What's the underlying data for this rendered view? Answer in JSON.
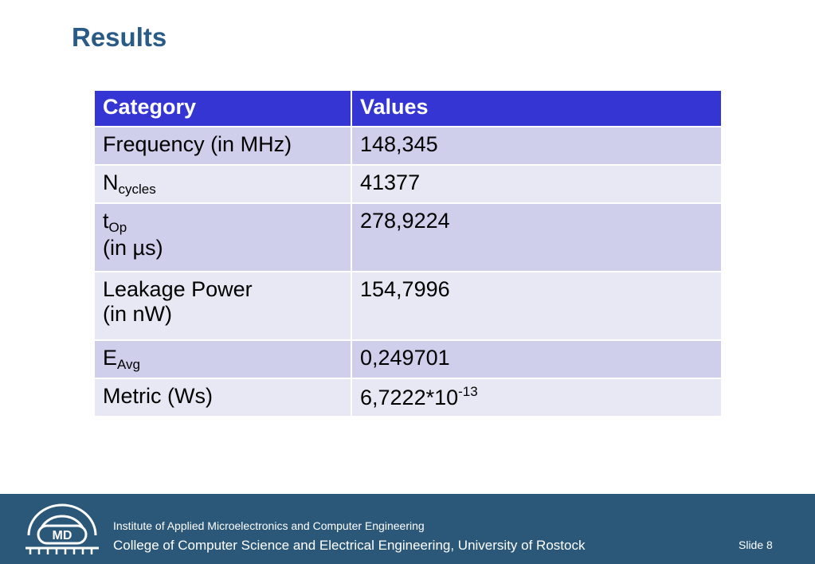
{
  "slide": {
    "title": "Results"
  },
  "table": {
    "headers": [
      "Category",
      "Values"
    ],
    "rows": [
      {
        "label": "Frequency (in MHz)",
        "value": "148,345"
      },
      {
        "label_main": "N",
        "label_sub": "cycles",
        "value": "41377"
      },
      {
        "label_main": "t",
        "label_sub": "Op",
        "label_line2": "(in µs)",
        "value": "278,9224"
      },
      {
        "label": "Leakage Power",
        "label_line2": "(in nW)",
        "value": "154,7996"
      },
      {
        "label_main": "E",
        "label_sub": "Avg",
        "value": "0,249701"
      },
      {
        "label": "Metric (Ws)",
        "value_main": "6,7222*10",
        "value_sup": "-13"
      }
    ]
  },
  "footer": {
    "logo_text": "MD",
    "institute": "Institute of Applied Microelectronics and Computer Engineering",
    "college": "College of Computer Science and Electrical Engineering, University of Rostock",
    "slide_number": "Slide 8"
  },
  "colors": {
    "title": "#2a5a86",
    "header_bg": "#3535d3",
    "row_odd": "#cfcfec",
    "row_even": "#e8e8f5",
    "footer_bg": "#2b5878"
  }
}
